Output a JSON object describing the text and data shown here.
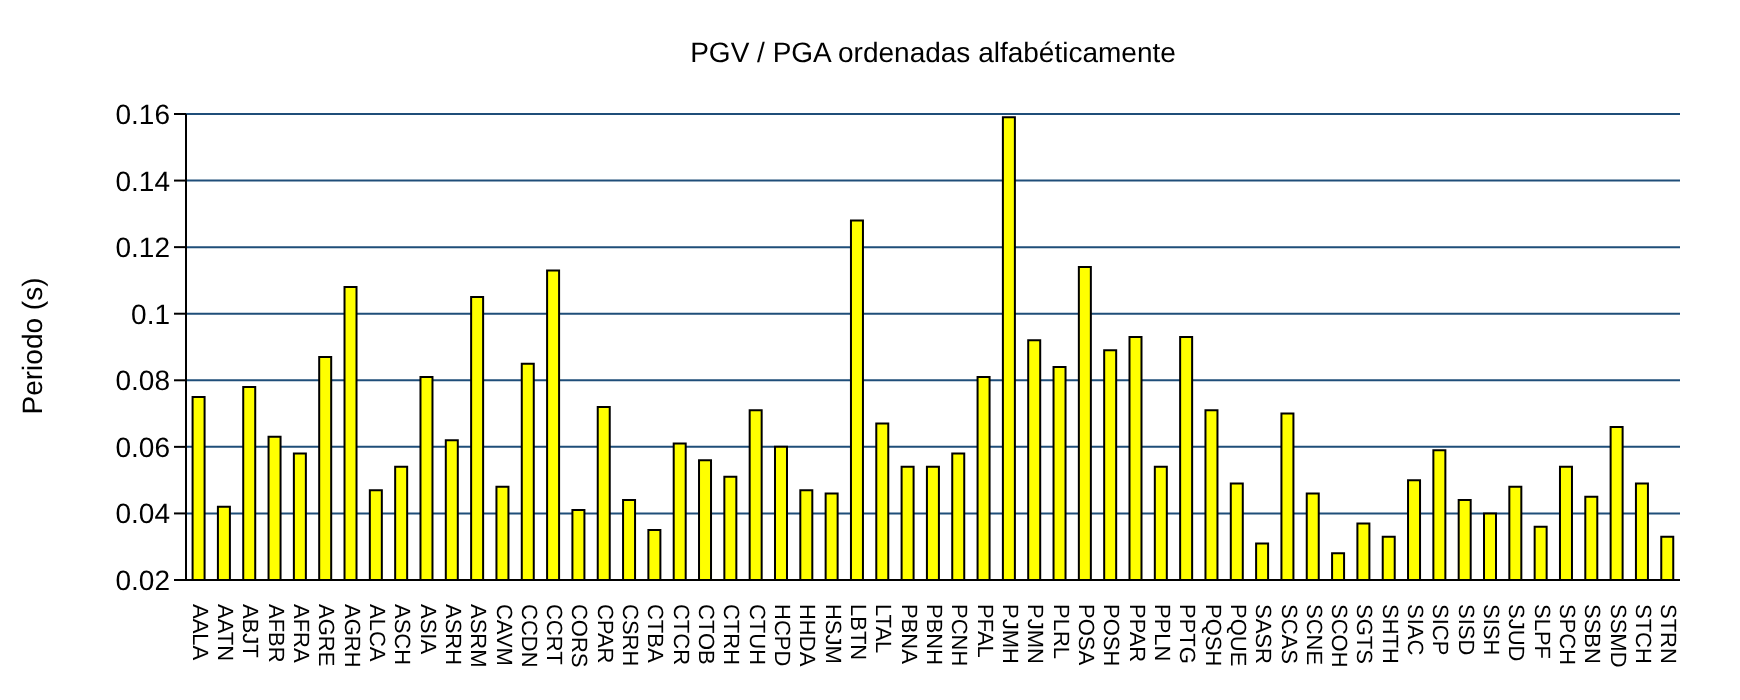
{
  "chart_data": {
    "type": "bar",
    "title": "PGV / PGA ordenadas alfabéticamente",
    "ylabel": "Periodo (s)",
    "categories": [
      "AALA",
      "AATN",
      "ABJT",
      "AFBR",
      "AFRA",
      "AGRE",
      "AGRH",
      "ALCA",
      "ASCH",
      "ASIA",
      "ASRH",
      "ASRM",
      "CAVM",
      "CCDN",
      "CCRT",
      "CORS",
      "CPAR",
      "CSRH",
      "CTBA",
      "CTCR",
      "CTOB",
      "CTRH",
      "CTUH",
      "HCPD",
      "HHDA",
      "HSJM",
      "LBTN",
      "LTAL",
      "PBNA",
      "PBNH",
      "PCNH",
      "PFAL",
      "PJMH",
      "PJMN",
      "PLRL",
      "POSA",
      "POSH",
      "PPAR",
      "PPLN",
      "PPTG",
      "PQSH",
      "PQUE",
      "SASR",
      "SCAS",
      "SCNE",
      "SCOH",
      "SGTS",
      "SHTH",
      "SIAC",
      "SICP",
      "SISD",
      "SISH",
      "SJUD",
      "SLPF",
      "SPCH",
      "SSBN",
      "SSMD",
      "STCH",
      "STRN"
    ],
    "values": [
      0.075,
      0.042,
      0.078,
      0.063,
      0.058,
      0.087,
      0.108,
      0.047,
      0.054,
      0.081,
      0.062,
      0.105,
      0.048,
      0.085,
      0.113,
      0.041,
      0.072,
      0.044,
      0.035,
      0.061,
      0.056,
      0.051,
      0.071,
      0.06,
      0.047,
      0.046,
      0.128,
      0.067,
      0.054,
      0.054,
      0.058,
      0.081,
      0.159,
      0.092,
      0.084,
      0.114,
      0.089,
      0.093,
      0.054,
      0.093,
      0.071,
      0.049,
      0.031,
      0.07,
      0.046,
      0.028,
      0.037,
      0.033,
      0.05,
      0.059,
      0.044,
      0.04,
      0.048,
      0.036,
      0.054,
      0.045,
      0.066,
      0.049,
      0.033
    ],
    "color": "#ffff00",
    "ylim": [
      0.02,
      0.16
    ],
    "yticks": [
      0.02,
      0.04,
      0.06,
      0.08,
      0.1,
      0.12,
      0.14,
      0.16
    ],
    "grid": "y",
    "legend": false
  }
}
